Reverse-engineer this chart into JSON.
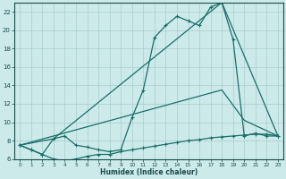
{
  "xlabel": "Humidex (Indice chaleur)",
  "bg_color": "#cceaea",
  "grid_color": "#aacccc",
  "line_color": "#1a6e6a",
  "xlim": [
    -0.5,
    23.5
  ],
  "ylim": [
    6,
    23
  ],
  "yticks": [
    6,
    8,
    10,
    12,
    14,
    16,
    18,
    20,
    22
  ],
  "xticks": [
    0,
    1,
    2,
    3,
    4,
    5,
    6,
    7,
    8,
    9,
    10,
    11,
    12,
    13,
    14,
    15,
    16,
    17,
    18,
    19,
    20,
    21,
    22,
    23
  ],
  "line1_x": [
    0,
    1,
    2,
    3,
    4,
    5,
    6,
    7,
    8,
    9,
    10,
    11,
    12,
    13,
    14,
    15,
    16,
    17,
    18,
    19,
    20,
    21,
    22,
    23
  ],
  "line1_y": [
    7.5,
    7.0,
    6.5,
    6.0,
    5.8,
    6.0,
    6.3,
    6.5,
    6.5,
    6.8,
    7.0,
    7.2,
    7.4,
    7.6,
    7.8,
    8.0,
    8.1,
    8.3,
    8.4,
    8.5,
    8.6,
    8.7,
    8.7,
    8.5
  ],
  "line2_x": [
    0,
    1,
    2,
    3,
    4,
    5,
    6,
    7,
    8,
    9,
    10,
    11,
    12,
    13,
    14,
    15,
    16,
    17,
    18,
    19,
    20,
    21,
    22,
    23
  ],
  "line2_y": [
    7.5,
    7.0,
    6.5,
    8.2,
    8.5,
    7.5,
    7.3,
    7.0,
    6.8,
    7.0,
    10.5,
    13.5,
    19.2,
    20.5,
    21.5,
    21.0,
    20.5,
    22.5,
    23.0,
    19.0,
    8.5,
    8.8,
    8.5,
    8.5
  ],
  "line3_x": [
    0,
    3,
    18,
    23
  ],
  "line3_y": [
    7.5,
    8.2,
    23.0,
    8.5
  ],
  "line4_x": [
    0,
    3,
    18,
    20,
    23
  ],
  "line4_y": [
    7.5,
    8.5,
    13.5,
    10.2,
    8.5
  ]
}
